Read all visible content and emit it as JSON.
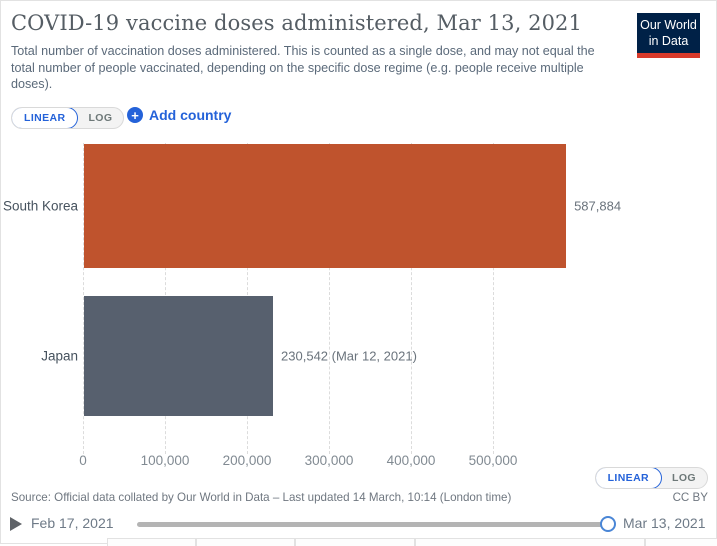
{
  "header": {
    "title": "COVID-19 vaccine doses administered, Mar 13, 2021",
    "subtitle": "Total number of vaccination doses administered. This is counted as a single dose, and may not equal the total number of people vaccinated, depending on the specific dose regime (e.g. people receive multiple doses).",
    "logo_line1": "Our World",
    "logo_line2": "in Data"
  },
  "controls": {
    "scale_linear": "LINEAR",
    "scale_log": "LOG",
    "add_country": "Add country",
    "plus_icon": "+"
  },
  "chart_data": {
    "type": "bar",
    "orientation": "horizontal",
    "title": "COVID-19 vaccine doses administered, Mar 13, 2021",
    "categories": [
      "South Korea",
      "Japan"
    ],
    "values": [
      587884,
      230542
    ],
    "value_labels": [
      "587,884",
      "230,542 (Mar 12, 2021)"
    ],
    "bar_colors": [
      "#bf532d",
      "#57606e"
    ],
    "x_ticks": [
      0,
      100000,
      200000,
      300000,
      400000,
      500000
    ],
    "x_tick_labels": [
      "0",
      "100,000",
      "200,000",
      "300,000",
      "400,000",
      "500,000"
    ],
    "xlim": [
      0,
      590000
    ],
    "grid": "dashed-vertical",
    "legend": "none"
  },
  "footer": {
    "source": "Source: Official data collated by Our World in Data – Last updated 14 March, 10:14 (London time)",
    "license": "CC BY"
  },
  "timeline": {
    "start_label": "Feb 17, 2021",
    "end_label": "Mar 13, 2021"
  },
  "colors": {
    "accent_blue": "#2462d9",
    "logo_background": "#002147",
    "logo_underline": "#d93a2b",
    "bar_south_korea": "#bf532d",
    "bar_japan": "#57606e",
    "track_gray": "#b4b4b4"
  }
}
